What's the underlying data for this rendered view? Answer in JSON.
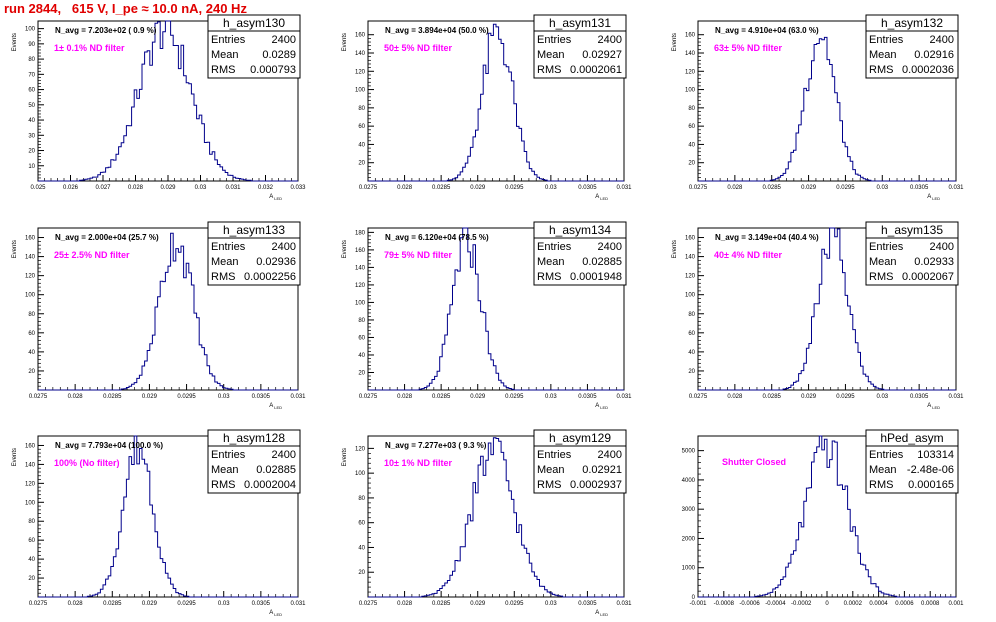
{
  "run_title": "run 2844,   615 V, I_pe ≈ 10.0 nA, 240 Hz",
  "colors": {
    "histogram": "#00008b",
    "annotation": "#ff00ff",
    "title": "#e00000"
  },
  "chart_data": [
    {
      "type": "histogram",
      "name": "h_asym130",
      "stats": [
        [
          "Entries",
          "2400"
        ],
        [
          "Mean",
          "0.0289"
        ],
        [
          "RMS",
          "0.000793"
        ]
      ],
      "header": "N_avg = 7.203e+02 ( 0.9 %)",
      "annotation": "1± 0.1% ND filter",
      "ylabel": "Events",
      "xlabel": "A_LED",
      "xlim": [
        0.025,
        0.033
      ],
      "ylim": [
        0,
        105
      ],
      "xticks": [
        "0.025",
        "0.026",
        "0.027",
        "0.028",
        "0.029",
        "0.03",
        "0.031",
        "0.032",
        "0.033"
      ],
      "yticks": [
        0,
        10,
        20,
        30,
        40,
        50,
        60,
        70,
        80,
        90,
        100
      ],
      "mean": 0.0289,
      "rms": 0.000793,
      "peak": 100
    },
    {
      "type": "histogram",
      "name": "h_asym131",
      "stats": [
        [
          "Entries",
          "2400"
        ],
        [
          "Mean",
          "0.02927"
        ],
        [
          "RMS",
          "0.0002061"
        ]
      ],
      "header": "N_avg = 3.894e+04 (50.0 %)",
      "annotation": "50± 5% ND filter",
      "ylabel": "Events",
      "xlabel": "A_LED",
      "xlim": [
        0.0275,
        0.031
      ],
      "ylim": [
        0,
        175
      ],
      "xticks": [
        "0.0275",
        "0.028",
        "0.0285",
        "0.029",
        "0.0295",
        "0.03",
        "0.0305",
        "0.031"
      ],
      "yticks": [
        0,
        20,
        40,
        60,
        80,
        100,
        120,
        140,
        160
      ],
      "mean": 0.02927,
      "rms": 0.0002061,
      "peak": 162
    },
    {
      "type": "histogram",
      "name": "h_asym132",
      "stats": [
        [
          "Entries",
          "2400"
        ],
        [
          "Mean",
          "0.02916"
        ],
        [
          "RMS",
          "0.0002036"
        ]
      ],
      "header": "N_avg = 4.910e+04 (63.0 %)",
      "annotation": "63± 5% ND filter",
      "ylabel": "Events",
      "xlabel": "A_LED",
      "xlim": [
        0.0275,
        0.031
      ],
      "ylim": [
        0,
        175
      ],
      "xticks": [
        "0.0275",
        "0.028",
        "0.0285",
        "0.029",
        "0.0295",
        "0.03",
        "0.0305",
        "0.031"
      ],
      "yticks": [
        0,
        20,
        40,
        60,
        80,
        100,
        120,
        140,
        160
      ],
      "mean": 0.02916,
      "rms": 0.0002036,
      "peak": 162
    },
    {
      "type": "histogram",
      "name": "h_asym133",
      "stats": [
        [
          "Entries",
          "2400"
        ],
        [
          "Mean",
          "0.02936"
        ],
        [
          "RMS",
          "0.0002256"
        ]
      ],
      "header": "N_avg = 2.000e+04 (25.7 %)",
      "annotation": "25± 2.5% ND filter",
      "ylabel": "Events",
      "xlabel": "A_LED",
      "xlim": [
        0.0275,
        0.031
      ],
      "ylim": [
        0,
        170
      ],
      "xticks": [
        "0.0275",
        "0.028",
        "0.0285",
        "0.029",
        "0.0295",
        "0.03",
        "0.0305",
        "0.031"
      ],
      "yticks": [
        0,
        20,
        40,
        60,
        80,
        100,
        120,
        140,
        160
      ],
      "mean": 0.02936,
      "rms": 0.0002256,
      "peak": 158
    },
    {
      "type": "histogram",
      "name": "h_asym134",
      "stats": [
        [
          "Entries",
          "2400"
        ],
        [
          "Mean",
          "0.02885"
        ],
        [
          "RMS",
          "0.0001948"
        ]
      ],
      "header": "N_avg = 6.120e+04 (78.5 %)",
      "annotation": "79± 5% ND filter",
      "ylabel": "Events",
      "xlabel": "A_LED",
      "xlim": [
        0.0275,
        0.031
      ],
      "ylim": [
        0,
        185
      ],
      "xticks": [
        "0.0275",
        "0.028",
        "0.0285",
        "0.029",
        "0.0295",
        "0.03",
        "0.0305",
        "0.031"
      ],
      "yticks": [
        0,
        20,
        40,
        60,
        80,
        100,
        120,
        140,
        160,
        180
      ],
      "mean": 0.02885,
      "rms": 0.0001948,
      "peak": 172
    },
    {
      "type": "histogram",
      "name": "h_asym135",
      "stats": [
        [
          "Entries",
          "2400"
        ],
        [
          "Mean",
          "0.02933"
        ],
        [
          "RMS",
          "0.0002067"
        ]
      ],
      "header": "N_avg = 3.149e+04 (40.4 %)",
      "annotation": "40± 4% ND filter",
      "ylabel": "Events",
      "xlabel": "A_LED",
      "xlim": [
        0.0275,
        0.031
      ],
      "ylim": [
        0,
        170
      ],
      "xticks": [
        "0.0275",
        "0.028",
        "0.0285",
        "0.029",
        "0.0295",
        "0.03",
        "0.0305",
        "0.031"
      ],
      "yticks": [
        0,
        20,
        40,
        60,
        80,
        100,
        120,
        140,
        160
      ],
      "mean": 0.02933,
      "rms": 0.0002067,
      "peak": 160
    },
    {
      "type": "histogram",
      "name": "h_asym128",
      "stats": [
        [
          "Entries",
          "2400"
        ],
        [
          "Mean",
          "0.02885"
        ],
        [
          "RMS",
          "0.0002004"
        ]
      ],
      "header": "N_avg = 7.793e+04 (100.0 %)",
      "annotation": "100% (No filter)",
      "ylabel": "Events",
      "xlabel": "A_LED",
      "xlim": [
        0.0275,
        0.031
      ],
      "ylim": [
        0,
        170
      ],
      "xticks": [
        "0.0275",
        "0.028",
        "0.0285",
        "0.029",
        "0.0295",
        "0.03",
        "0.0305",
        "0.031"
      ],
      "yticks": [
        0,
        20,
        40,
        60,
        80,
        100,
        120,
        140,
        160
      ],
      "mean": 0.02885,
      "rms": 0.0002004,
      "peak": 160
    },
    {
      "type": "histogram",
      "name": "h_asym129",
      "stats": [
        [
          "Entries",
          "2400"
        ],
        [
          "Mean",
          "0.02921"
        ],
        [
          "RMS",
          "0.0002937"
        ]
      ],
      "header": "N_avg = 7.277e+03 ( 9.3 %)",
      "annotation": "10± 1% ND filter",
      "ylabel": "Events",
      "xlabel": "A_LED",
      "xlim": [
        0.0275,
        0.031
      ],
      "ylim": [
        0,
        130
      ],
      "xticks": [
        "0.0275",
        "0.028",
        "0.0285",
        "0.029",
        "0.0295",
        "0.03",
        "0.0305",
        "0.031"
      ],
      "yticks": [
        0,
        20,
        40,
        60,
        80,
        100,
        120
      ],
      "mean": 0.02921,
      "rms": 0.0002937,
      "peak": 118
    },
    {
      "type": "histogram",
      "name": "hPed_asym",
      "stats": [
        [
          "Entries",
          "103314"
        ],
        [
          "Mean",
          "-2.48e-06"
        ],
        [
          "RMS",
          "0.000165"
        ]
      ],
      "header": "",
      "annotation": "Shutter Closed",
      "ylabel": "",
      "xlabel": "",
      "xlim": [
        -0.001,
        0.001
      ],
      "ylim": [
        0,
        5500
      ],
      "xticks": [
        "-0.001",
        "-0.0008",
        "-0.0006",
        "-0.0004",
        "-0.0002",
        "0",
        "0.0002",
        "0.0004",
        "0.0006",
        "0.0008",
        "0.001"
      ],
      "yticks": [
        0,
        1000,
        2000,
        3000,
        4000,
        5000
      ],
      "mean": -2.48e-06,
      "rms": 0.000165,
      "peak": 5100
    }
  ]
}
